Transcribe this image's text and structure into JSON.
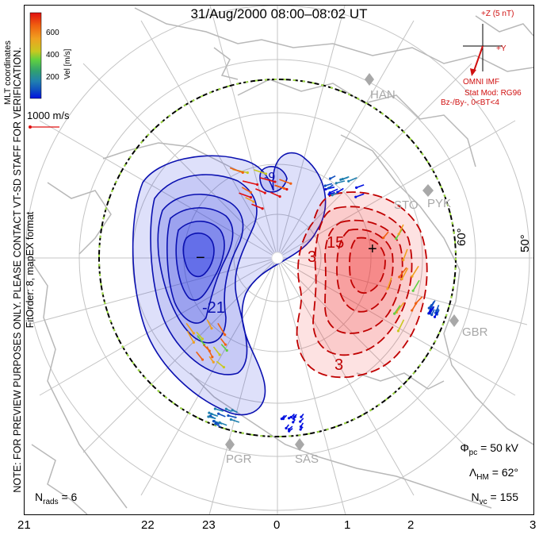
{
  "title": "31/Aug/2000 08:00–08:02 UT",
  "note_vertical": "NOTE: FOR PREVIEW PURPOSES ONLY. PLEASE CONTACT VT-SD STAFF FOR VERIFICATION.",
  "fit_order": "FitOrder: 8,  mapEX format",
  "coord_system": "MLT coordinates",
  "colorbar": {
    "unit": "Vel [m/s]",
    "ticks": [
      "600",
      "400",
      "200"
    ],
    "colors": [
      "#e01010",
      "#f06010",
      "#f0a020",
      "#c8c820",
      "#60d040",
      "#30a070",
      "#2080b0",
      "#1050c0",
      "#0010e0"
    ]
  },
  "scale_vector": "1000 m/s",
  "imf": {
    "z_label": "+Z (5 nT)",
    "y_label": "+Y",
    "source": "OMNI IMF",
    "stat_mod": "Stat Mod: RG96",
    "condition": "Bz-/By-, 0<BT<4"
  },
  "stations": [
    "HAN",
    "STO",
    "PYK",
    "GBR",
    "PGR",
    "SAS"
  ],
  "lat_labels": [
    "60°",
    "50°"
  ],
  "contours": {
    "neg_labels": [
      "-21",
      "-9"
    ],
    "pos_labels": [
      "15",
      "3",
      "3"
    ],
    "neg_sign": "−",
    "pos_sign": "+"
  },
  "mlt_ticks": [
    "21",
    "22",
    "23",
    "0",
    "1",
    "2",
    "3"
  ],
  "stats": {
    "phi_pc": "50 kV",
    "lambda_hm": "62°",
    "n_vc": "155",
    "n_rads": "6"
  }
}
